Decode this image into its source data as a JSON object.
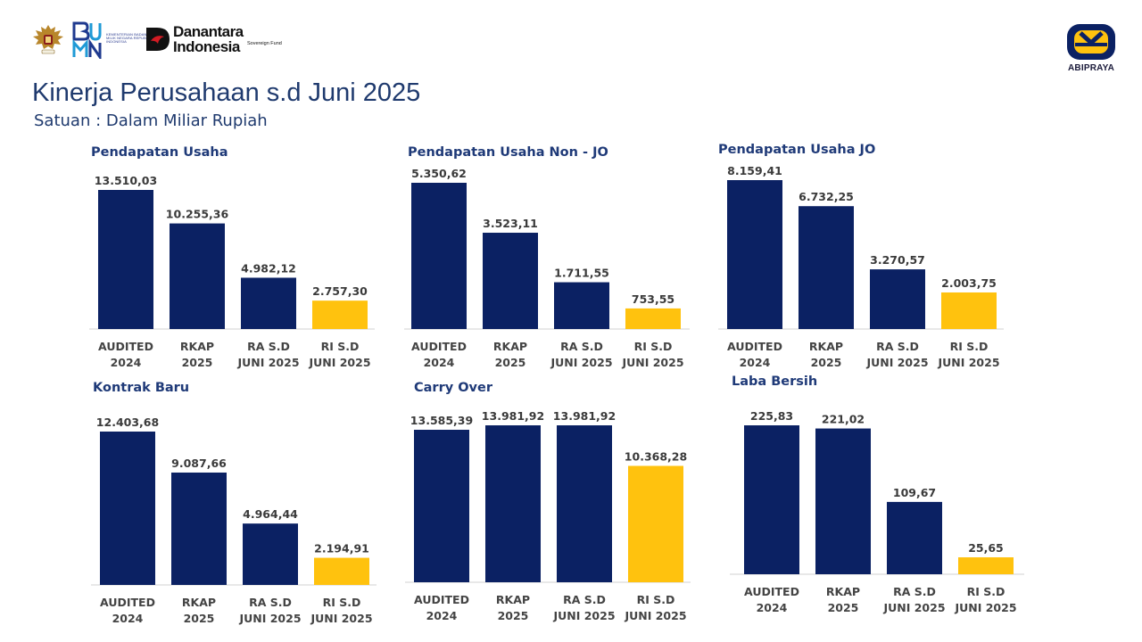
{
  "header": {
    "logos": {
      "garuda": {
        "icon": "garuda-emblem-icon"
      },
      "bumn": {
        "mark": "BUMN",
        "subtext": "KEMENTERIAN BADAN USAHA MILIK NEGARA REPUBLIK INDONESIA"
      },
      "danantara": {
        "line1": "Danantara",
        "line2": "Indonesia",
        "tag": "Sovereign Fund"
      },
      "abipraya": {
        "text": "ABIPRAYA"
      }
    },
    "title": "Kinerja Perusahaan s.d Juni 2025",
    "subtitle": "Satuan : Dalam Miliar Rupiah"
  },
  "colors": {
    "navy": "#0b2163",
    "yellow": "#ffc20e",
    "title": "#1f3a6e",
    "panel_title": "#1f3a78"
  },
  "chart_data": [
    {
      "type": "bar",
      "title": "Pendapatan Usaha",
      "categories": [
        [
          "AUDITED",
          "2024"
        ],
        [
          "RKAP",
          "2025"
        ],
        [
          "RA S.D",
          "JUNI 2025"
        ],
        [
          "RI S.D",
          "JUNI 2025"
        ]
      ],
      "values": [
        13510.03,
        10255.36,
        4982.12,
        2757.3
      ],
      "value_labels": [
        "13.510,03",
        "10.255,36",
        "4.982,12",
        "2.757,30"
      ],
      "bar_colors": [
        "navy",
        "navy",
        "navy",
        "yellow"
      ]
    },
    {
      "type": "bar",
      "title": "Pendapatan Usaha Non - JO",
      "categories": [
        [
          "AUDITED",
          "2024"
        ],
        [
          "RKAP",
          "2025"
        ],
        [
          "RA S.D",
          "JUNI 2025"
        ],
        [
          "RI S.D",
          "JUNI 2025"
        ]
      ],
      "values": [
        5350.62,
        3523.11,
        1711.55,
        753.55
      ],
      "value_labels": [
        "5.350,62",
        "3.523,11",
        "1.711,55",
        "753,55"
      ],
      "bar_colors": [
        "navy",
        "navy",
        "navy",
        "yellow"
      ]
    },
    {
      "type": "bar",
      "title": "Pendapatan Usaha JO",
      "categories": [
        [
          "AUDITED",
          "2024"
        ],
        [
          "RKAP",
          "2025"
        ],
        [
          "RA S.D",
          "JUNI 2025"
        ],
        [
          "RI S.D",
          "JUNI 2025"
        ]
      ],
      "values": [
        8159.41,
        6732.25,
        3270.57,
        2003.75
      ],
      "value_labels": [
        "8.159,41",
        "6.732,25",
        "3.270,57",
        "2.003,75"
      ],
      "bar_colors": [
        "navy",
        "navy",
        "navy",
        "yellow"
      ]
    },
    {
      "type": "bar",
      "title": "Kontrak Baru",
      "categories": [
        [
          "AUDITED",
          "2024"
        ],
        [
          "RKAP",
          "2025"
        ],
        [
          "RA S.D",
          "JUNI 2025"
        ],
        [
          "RI S.D",
          "JUNI 2025"
        ]
      ],
      "values": [
        12403.68,
        9087.66,
        4964.44,
        2194.91
      ],
      "value_labels": [
        "12.403,68",
        "9.087,66",
        "4.964,44",
        "2.194,91"
      ],
      "bar_colors": [
        "navy",
        "navy",
        "navy",
        "yellow"
      ]
    },
    {
      "type": "bar",
      "title": "Carry Over",
      "categories": [
        [
          "AUDITED",
          "2024"
        ],
        [
          "RKAP",
          "2025"
        ],
        [
          "RA S.D",
          "JUNI 2025"
        ],
        [
          "RI S.D",
          "JUNI 2025"
        ]
      ],
      "values": [
        13585.39,
        13981.92,
        13981.92,
        10368.28
      ],
      "value_labels": [
        "13.585,39",
        "13.981,92",
        "13.981,92",
        "10.368,28"
      ],
      "bar_colors": [
        "navy",
        "navy",
        "navy",
        "yellow"
      ]
    },
    {
      "type": "bar",
      "title": "Laba Bersih",
      "categories": [
        [
          "AUDITED",
          "2024"
        ],
        [
          "RKAP",
          "2025"
        ],
        [
          "RA S.D",
          "JUNI 2025"
        ],
        [
          "RI S.D",
          "JUNI 2025"
        ]
      ],
      "values": [
        225.83,
        221.02,
        109.67,
        25.65
      ],
      "value_labels": [
        "225,83",
        "221,02",
        "109,67",
        "25,65"
      ],
      "bar_colors": [
        "navy",
        "navy",
        "navy",
        "yellow"
      ]
    }
  ]
}
